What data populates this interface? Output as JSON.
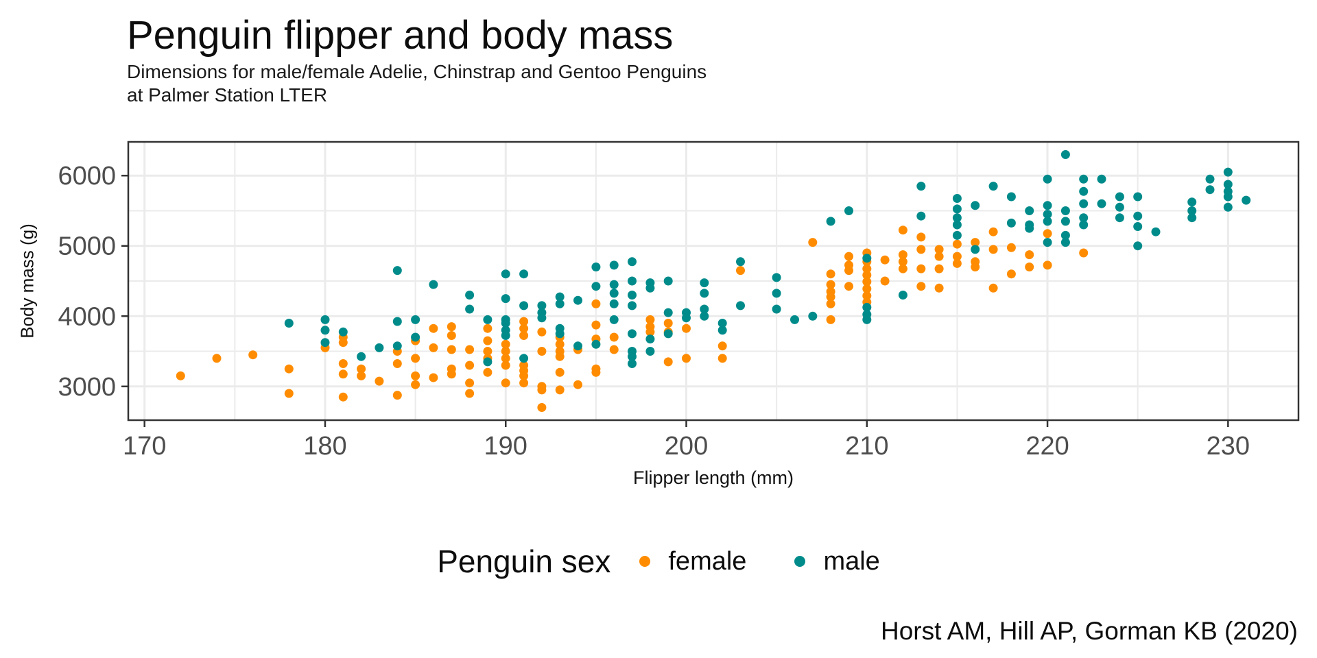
{
  "figure": {
    "title": "Penguin flipper and body mass",
    "subtitle_line1": "Dimensions for male/female Adelie, Chinstrap and Gentoo Penguins",
    "subtitle_line2": "at Palmer Station LTER",
    "caption": "Horst AM, Hill AP, Gorman KB (2020)"
  },
  "legend": {
    "title": "Penguin sex",
    "items": [
      {
        "label": "female",
        "color": "#FF8C00"
      },
      {
        "label": "male",
        "color": "#008B8B"
      }
    ]
  },
  "colors": {
    "female": "#FF8C00",
    "male": "#008B8B",
    "gridline": "#EBEBEB",
    "panel_border": "#333333",
    "tick_mark": "#333333",
    "tick_label": "#4d4d4d",
    "background": "#FFFFFF"
  },
  "chart_data": {
    "type": "scatter",
    "title": "Penguin flipper and body mass",
    "subtitle": "Dimensions for male/female Adelie, Chinstrap and Gentoo Penguins at Palmer Station LTER",
    "caption": "Horst AM, Hill AP, Gorman KB (2020)",
    "xlabel": "Flipper length (mm)",
    "ylabel": "Body mass (g)",
    "legend_title": "Penguin sex",
    "legend_position": "bottom",
    "grid": true,
    "x_domain": [
      169.1,
      233.9
    ],
    "y_domain": [
      2520,
      6480
    ],
    "x_ticks": [
      170,
      180,
      190,
      200,
      210,
      220,
      230
    ],
    "y_ticks": [
      3000,
      4000,
      5000,
      6000
    ],
    "x_minor_ticks": [
      175,
      185,
      195,
      205,
      215,
      225
    ],
    "y_minor_ticks": [
      3500,
      4500,
      5500
    ],
    "point_radius_px": 6.5,
    "series": [
      {
        "name": "female",
        "color": "#FF8C00",
        "points": [
          [
            172,
            3150
          ],
          [
            174,
            3400
          ],
          [
            176,
            3450
          ],
          [
            178,
            3250
          ],
          [
            178,
            2900
          ],
          [
            180,
            3550
          ],
          [
            181,
            3700
          ],
          [
            181,
            3625
          ],
          [
            181,
            3325
          ],
          [
            181,
            3175
          ],
          [
            181,
            2850
          ],
          [
            182,
            3250
          ],
          [
            182,
            3150
          ],
          [
            183,
            3075
          ],
          [
            184,
            3500
          ],
          [
            184,
            3325
          ],
          [
            184,
            2875
          ],
          [
            185,
            3650
          ],
          [
            185,
            3400
          ],
          [
            185,
            3150
          ],
          [
            185,
            3025
          ],
          [
            186,
            3825
          ],
          [
            186,
            3550
          ],
          [
            186,
            3125
          ],
          [
            187,
            3850
          ],
          [
            187,
            3725
          ],
          [
            187,
            3525
          ],
          [
            187,
            3250
          ],
          [
            187,
            3175
          ],
          [
            188,
            3525
          ],
          [
            188,
            3300
          ],
          [
            188,
            3050
          ],
          [
            188,
            2900
          ],
          [
            189,
            3825
          ],
          [
            189,
            3650
          ],
          [
            189,
            3500
          ],
          [
            189,
            3400
          ],
          [
            189,
            3200
          ],
          [
            190,
            3600
          ],
          [
            190,
            3500
          ],
          [
            190,
            3400
          ],
          [
            190,
            3300
          ],
          [
            190,
            3050
          ],
          [
            191,
            3925
          ],
          [
            191,
            3825
          ],
          [
            191,
            3725
          ],
          [
            191,
            3300
          ],
          [
            191,
            3225
          ],
          [
            191,
            3150
          ],
          [
            191,
            3050
          ],
          [
            192,
            3775
          ],
          [
            192,
            3500
          ],
          [
            192,
            3000
          ],
          [
            192,
            2950
          ],
          [
            192,
            2700
          ],
          [
            193,
            3700
          ],
          [
            193,
            3600
          ],
          [
            193,
            3500
          ],
          [
            193,
            3425
          ],
          [
            193,
            3200
          ],
          [
            193,
            2950
          ],
          [
            194,
            3525
          ],
          [
            194,
            3025
          ],
          [
            195,
            4175
          ],
          [
            195,
            3875
          ],
          [
            195,
            3675
          ],
          [
            195,
            3250
          ],
          [
            195,
            3200
          ],
          [
            196,
            3700
          ],
          [
            196,
            3525
          ],
          [
            198,
            3950
          ],
          [
            198,
            3850
          ],
          [
            198,
            3775
          ],
          [
            199,
            3900
          ],
          [
            199,
            3775
          ],
          [
            199,
            3350
          ],
          [
            200,
            3825
          ],
          [
            200,
            3400
          ],
          [
            202,
            3575
          ],
          [
            202,
            3400
          ],
          [
            203,
            4650
          ],
          [
            207,
            5050
          ],
          [
            208,
            4600
          ],
          [
            208,
            4450
          ],
          [
            208,
            4350
          ],
          [
            208,
            4275
          ],
          [
            208,
            4175
          ],
          [
            208,
            3950
          ],
          [
            209,
            4850
          ],
          [
            209,
            4725
          ],
          [
            209,
            4650
          ],
          [
            209,
            4425
          ],
          [
            210,
            4900
          ],
          [
            210,
            4775
          ],
          [
            210,
            4675
          ],
          [
            210,
            4585
          ],
          [
            210,
            4490
          ],
          [
            210,
            4390
          ],
          [
            210,
            4290
          ],
          [
            210,
            4200
          ],
          [
            211,
            4800
          ],
          [
            211,
            4500
          ],
          [
            212,
            5225
          ],
          [
            212,
            4875
          ],
          [
            212,
            4775
          ],
          [
            212,
            4675
          ],
          [
            213,
            5125
          ],
          [
            213,
            4950
          ],
          [
            213,
            4675
          ],
          [
            213,
            4425
          ],
          [
            214,
            4950
          ],
          [
            214,
            4850
          ],
          [
            214,
            4675
          ],
          [
            214,
            4400
          ],
          [
            215,
            5025
          ],
          [
            215,
            4850
          ],
          [
            215,
            4750
          ],
          [
            216,
            5050
          ],
          [
            216,
            4775
          ],
          [
            216,
            4700
          ],
          [
            217,
            5200
          ],
          [
            217,
            4950
          ],
          [
            217,
            4400
          ],
          [
            218,
            4975
          ],
          [
            218,
            4600
          ],
          [
            219,
            4875
          ],
          [
            219,
            4700
          ],
          [
            220,
            5175
          ],
          [
            220,
            4725
          ],
          [
            222,
            4900
          ]
        ]
      },
      {
        "name": "male",
        "color": "#008B8B",
        "points": [
          [
            178,
            3900
          ],
          [
            180,
            3950
          ],
          [
            180,
            3800
          ],
          [
            180,
            3625
          ],
          [
            181,
            3775
          ],
          [
            182,
            3425
          ],
          [
            183,
            3550
          ],
          [
            184,
            4650
          ],
          [
            184,
            3925
          ],
          [
            184,
            3575
          ],
          [
            185,
            3950
          ],
          [
            185,
            3700
          ],
          [
            186,
            4450
          ],
          [
            188,
            4300
          ],
          [
            188,
            4100
          ],
          [
            189,
            3950
          ],
          [
            189,
            3350
          ],
          [
            190,
            4600
          ],
          [
            190,
            4250
          ],
          [
            190,
            3950
          ],
          [
            190,
            3900
          ],
          [
            190,
            3800
          ],
          [
            190,
            3725
          ],
          [
            191,
            4600
          ],
          [
            191,
            4150
          ],
          [
            191,
            3400
          ],
          [
            192,
            4150
          ],
          [
            192,
            4050
          ],
          [
            192,
            3975
          ],
          [
            193,
            4275
          ],
          [
            193,
            4175
          ],
          [
            193,
            3825
          ],
          [
            193,
            3750
          ],
          [
            194,
            4225
          ],
          [
            194,
            3575
          ],
          [
            195,
            4700
          ],
          [
            195,
            4425
          ],
          [
            195,
            3600
          ],
          [
            196,
            4725
          ],
          [
            196,
            4450
          ],
          [
            196,
            4325
          ],
          [
            196,
            4175
          ],
          [
            196,
            3950
          ],
          [
            197,
            4775
          ],
          [
            197,
            4500
          ],
          [
            197,
            4300
          ],
          [
            197,
            4150
          ],
          [
            197,
            3750
          ],
          [
            197,
            3500
          ],
          [
            197,
            3425
          ],
          [
            197,
            3325
          ],
          [
            198,
            4475
          ],
          [
            198,
            4400
          ],
          [
            198,
            3675
          ],
          [
            198,
            3500
          ],
          [
            199,
            4500
          ],
          [
            199,
            4050
          ],
          [
            199,
            3750
          ],
          [
            200,
            4050
          ],
          [
            200,
            3975
          ],
          [
            201,
            4475
          ],
          [
            201,
            4325
          ],
          [
            201,
            4100
          ],
          [
            201,
            4000
          ],
          [
            202,
            3900
          ],
          [
            202,
            3800
          ],
          [
            203,
            4775
          ],
          [
            203,
            4150
          ],
          [
            205,
            4550
          ],
          [
            205,
            4325
          ],
          [
            205,
            4100
          ],
          [
            206,
            3950
          ],
          [
            207,
            4000
          ],
          [
            208,
            5350
          ],
          [
            209,
            5500
          ],
          [
            210,
            4825
          ],
          [
            210,
            4125
          ],
          [
            210,
            4025
          ],
          [
            210,
            3950
          ],
          [
            212,
            4300
          ],
          [
            213,
            5850
          ],
          [
            213,
            5425
          ],
          [
            215,
            5675
          ],
          [
            215,
            5525
          ],
          [
            215,
            5400
          ],
          [
            215,
            5300
          ],
          [
            215,
            5150
          ],
          [
            216,
            5575
          ],
          [
            216,
            4950
          ],
          [
            217,
            5850
          ],
          [
            218,
            5700
          ],
          [
            218,
            5325
          ],
          [
            219,
            5500
          ],
          [
            219,
            5300
          ],
          [
            219,
            5250
          ],
          [
            220,
            5950
          ],
          [
            220,
            5575
          ],
          [
            220,
            5450
          ],
          [
            220,
            5350
          ],
          [
            220,
            5050
          ],
          [
            221,
            6300
          ],
          [
            221,
            5500
          ],
          [
            221,
            5350
          ],
          [
            221,
            5150
          ],
          [
            221,
            5050
          ],
          [
            222,
            5950
          ],
          [
            222,
            5775
          ],
          [
            222,
            5600
          ],
          [
            222,
            5400
          ],
          [
            222,
            5300
          ],
          [
            223,
            5950
          ],
          [
            223,
            5600
          ],
          [
            224,
            5700
          ],
          [
            224,
            5550
          ],
          [
            224,
            5400
          ],
          [
            225,
            5700
          ],
          [
            225,
            5425
          ],
          [
            225,
            5275
          ],
          [
            225,
            5000
          ],
          [
            226,
            5200
          ],
          [
            228,
            5625
          ],
          [
            228,
            5500
          ],
          [
            228,
            5400
          ],
          [
            229,
            5950
          ],
          [
            229,
            5800
          ],
          [
            230,
            6050
          ],
          [
            230,
            5875
          ],
          [
            230,
            5775
          ],
          [
            230,
            5700
          ],
          [
            230,
            5550
          ],
          [
            231,
            5650
          ]
        ]
      }
    ]
  }
}
